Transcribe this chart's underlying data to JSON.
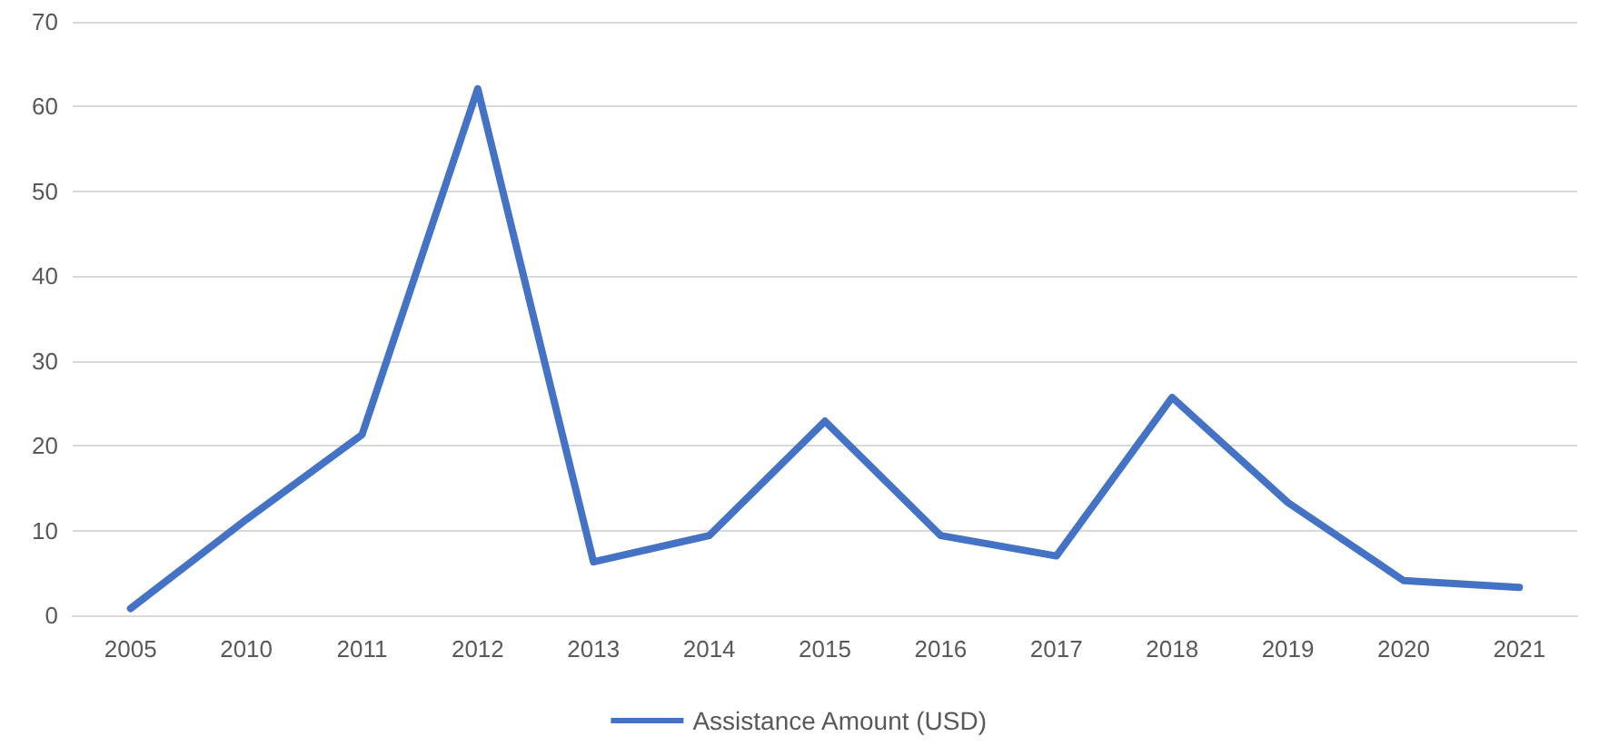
{
  "chart_data": {
    "type": "line",
    "categories": [
      "2005",
      "2010",
      "2011",
      "2012",
      "2013",
      "2014",
      "2015",
      "2016",
      "2017",
      "2018",
      "2019",
      "2020",
      "2021"
    ],
    "series": [
      {
        "name": "Assistance Amount (USD)",
        "color": "#4472c4",
        "values": [
          0.8,
          11.3,
          21.3,
          62.1,
          6.3,
          9.4,
          22.9,
          9.4,
          7.0,
          25.7,
          13.3,
          4.1,
          3.3
        ]
      }
    ],
    "ylim": [
      0,
      70
    ],
    "yticks": [
      0,
      10,
      20,
      30,
      40,
      50,
      60,
      70
    ],
    "grid": "y",
    "legend": "bottom",
    "marker": "none",
    "line_style": "solid"
  }
}
